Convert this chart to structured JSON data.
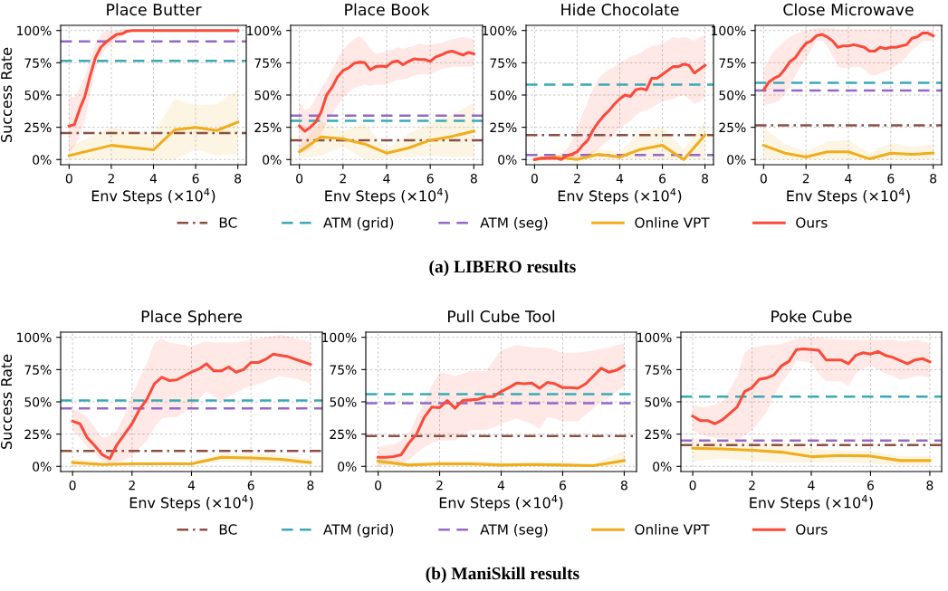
{
  "chart_data": [
    {
      "type": "line",
      "title": "Place Butter",
      "xlabel": "Env Steps (×10$^{4}$)",
      "ylabel": "Success Rate",
      "xlim": [
        -0.4,
        8.4
      ],
      "xticks": [
        0,
        2,
        4,
        6,
        8
      ],
      "ylim": [
        -4,
        104
      ],
      "yticks": [
        {
          "value": 0,
          "label": "0%"
        },
        {
          "value": 25,
          "label": "25%"
        },
        {
          "value": 50,
          "label": "50%"
        },
        {
          "value": 75,
          "label": "75%"
        },
        {
          "value": 100,
          "label": "100%"
        }
      ],
      "grid": true,
      "legend": "bottom",
      "annotations": [
        "(a) LIBERO results"
      ],
      "ref_lines": [
        {
          "axis": "y",
          "value": 20.5,
          "label": "BC",
          "color": "#8c4f45",
          "line_style": "dashdot"
        },
        {
          "axis": "y",
          "value": 76.5,
          "label": "ATM (grid)",
          "color": "#3aa9b5",
          "line_style": "dashed"
        },
        {
          "axis": "y",
          "value": 91.5,
          "label": "ATM (seg)",
          "color": "#9467c9",
          "line_style": "dashed"
        }
      ],
      "series": [
        {
          "name": "Online VPT",
          "color": "#f0ad1c",
          "x": [
            0,
            2,
            4,
            5,
            6,
            7,
            8
          ],
          "values": [
            3,
            11,
            7.5,
            23,
            25,
            22.5,
            29
          ],
          "lower": [
            0,
            0,
            0,
            0,
            8,
            3,
            4
          ],
          "upper": [
            10,
            25,
            20,
            47,
            42,
            43,
            54
          ]
        },
        {
          "name": "Ours",
          "color": "#fb4a3a",
          "x": [
            0,
            0.25,
            0.5,
            0.75,
            1,
            1.25,
            1.5,
            1.75,
            2,
            2.25,
            2.5,
            2.75,
            3,
            3.25,
            3.5,
            3.75,
            4,
            4.25,
            4.5,
            4.75,
            5,
            5.25,
            5.5,
            5.75,
            6,
            6.25,
            6.5,
            6.75,
            7,
            7.25,
            7.5,
            7.75,
            8
          ],
          "values": [
            26,
            27,
            39,
            49,
            65,
            79,
            87,
            91,
            94,
            97,
            97.5,
            99.5,
            100,
            100,
            100,
            100,
            100,
            100,
            100,
            100,
            100,
            100,
            100,
            100,
            100,
            100,
            100,
            100,
            100,
            100,
            100,
            100,
            100
          ],
          "lower": [
            5,
            10,
            18,
            30,
            50,
            70,
            80,
            86,
            89,
            93,
            95,
            98,
            100,
            100,
            100,
            100,
            100,
            100,
            100,
            100,
            100,
            100,
            100,
            100,
            100,
            100,
            100,
            100,
            100,
            100,
            100,
            100,
            100
          ],
          "upper": [
            50,
            48,
            55,
            64,
            78,
            90,
            97,
            100,
            100,
            100,
            101,
            101,
            100,
            100,
            100,
            100,
            100,
            100,
            100,
            100,
            100,
            100,
            100,
            100,
            100,
            100,
            100,
            100,
            100,
            100,
            100,
            100,
            100
          ]
        }
      ]
    },
    {
      "type": "line",
      "title": "Place Book",
      "xlabel": "Env Steps (×10$^{4}$)",
      "xlim": [
        -0.4,
        8.4
      ],
      "xticks": [
        0,
        2,
        4,
        6,
        8
      ],
      "ylim": [
        -4,
        104
      ],
      "yticks": [
        {
          "value": 0,
          "label": "0%"
        },
        {
          "value": 25,
          "label": "25%"
        },
        {
          "value": 50,
          "label": "50%"
        },
        {
          "value": 75,
          "label": "75%"
        },
        {
          "value": 100,
          "label": "100%"
        }
      ],
      "grid": true,
      "ref_lines": [
        {
          "axis": "y",
          "value": 15,
          "color": "#8c4f45",
          "line_style": "dashdot"
        },
        {
          "axis": "y",
          "value": 30,
          "color": "#3aa9b5",
          "line_style": "dashed"
        },
        {
          "axis": "y",
          "value": 34,
          "color": "#9467c9",
          "line_style": "dashed"
        }
      ],
      "series": [
        {
          "color": "#f0ad1c",
          "x": [
            0,
            1,
            2,
            3,
            4,
            5,
            6,
            7,
            8
          ],
          "values": [
            6,
            17.5,
            16,
            12,
            5,
            9,
            15,
            18,
            22
          ],
          "lower": [
            1,
            3,
            10,
            0,
            1,
            2,
            3,
            2,
            2
          ],
          "upper": [
            10,
            30,
            22,
            28,
            8,
            20,
            28,
            35,
            44
          ]
        },
        {
          "color": "#fb4a3a",
          "x": [
            0,
            0.25,
            0.5,
            0.75,
            1,
            1.25,
            1.5,
            1.75,
            2,
            2.25,
            2.5,
            2.75,
            3,
            3.25,
            3.5,
            3.75,
            4,
            4.25,
            4.5,
            4.75,
            5,
            5.25,
            5.5,
            5.75,
            6,
            6.25,
            6.5,
            6.75,
            7,
            7.25,
            7.5,
            7.75,
            8
          ],
          "values": [
            26,
            22,
            25,
            29,
            37,
            50,
            56,
            64,
            69,
            71,
            74.5,
            75.5,
            75,
            69.5,
            72,
            72.5,
            72,
            75.5,
            76.5,
            73.5,
            76,
            78,
            77.5,
            77.5,
            76,
            79.5,
            81,
            83,
            84,
            82.5,
            81,
            83,
            82
          ],
          "lower": [
            5,
            6,
            8,
            14,
            20,
            28,
            35,
            42,
            48,
            52,
            55,
            57,
            58,
            57,
            58,
            58,
            58,
            60,
            62,
            62,
            63,
            65,
            66,
            66,
            66,
            68,
            70,
            71,
            72,
            72,
            72,
            72,
            72
          ],
          "upper": [
            45,
            38,
            40,
            48,
            55,
            62,
            70,
            78,
            85,
            90,
            93,
            96,
            92,
            86,
            82,
            83,
            84,
            85,
            87,
            86,
            87,
            88,
            90,
            89,
            89,
            90,
            90,
            92,
            93,
            94,
            95,
            94,
            93
          ]
        }
      ]
    },
    {
      "type": "line",
      "title": "Hide Chocolate",
      "xlabel": "Env Steps (×10$^{4}$)",
      "xlim": [
        -0.4,
        8.4
      ],
      "xticks": [
        0,
        2,
        4,
        6,
        8
      ],
      "ylim": [
        -4,
        104
      ],
      "yticks": [
        {
          "value": 0,
          "label": "0%"
        },
        {
          "value": 25,
          "label": "25%"
        },
        {
          "value": 50,
          "label": "50%"
        },
        {
          "value": 75,
          "label": "75%"
        },
        {
          "value": 100,
          "label": "100%"
        }
      ],
      "grid": true,
      "ref_lines": [
        {
          "axis": "y",
          "value": 19,
          "color": "#8c4f45",
          "line_style": "dashdot"
        },
        {
          "axis": "y",
          "value": 58,
          "color": "#3aa9b5",
          "line_style": "dashed"
        },
        {
          "axis": "y",
          "value": 3.5,
          "color": "#9467c9",
          "line_style": "dashed"
        }
      ],
      "series": [
        {
          "color": "#f0ad1c",
          "x": [
            0,
            1,
            2,
            3,
            4,
            5,
            6,
            7,
            8
          ],
          "values": [
            0,
            2,
            0,
            4,
            2,
            8,
            11,
            0,
            19
          ],
          "lower": [
            0,
            0,
            0,
            0,
            0,
            0,
            0,
            0,
            0
          ],
          "upper": [
            1,
            4,
            3,
            8,
            6,
            22,
            25,
            8,
            30
          ]
        },
        {
          "color": "#fb4a3a",
          "x": [
            0,
            0.25,
            0.5,
            0.75,
            1,
            1.25,
            1.5,
            1.75,
            2,
            2.25,
            2.5,
            2.75,
            3,
            3.25,
            3.5,
            3.75,
            4,
            4.25,
            4.5,
            4.75,
            5,
            5.25,
            5.5,
            5.75,
            6,
            6.25,
            6.5,
            6.75,
            7,
            7.25,
            7.5,
            7.75,
            8
          ],
          "values": [
            0,
            1,
            1,
            1,
            1,
            0,
            3,
            4,
            6,
            11,
            15,
            23,
            29,
            34,
            38,
            43,
            47,
            50,
            49,
            54,
            55,
            54,
            63,
            63,
            66,
            69,
            72,
            72,
            74,
            73,
            67,
            70,
            73
          ],
          "lower": [
            0,
            0,
            0,
            0,
            0,
            0,
            0,
            0,
            0,
            1,
            2,
            5,
            8,
            12,
            15,
            20,
            25,
            27,
            30,
            34,
            37,
            38,
            40,
            43,
            45,
            46,
            47,
            49,
            50,
            47,
            43,
            45,
            48
          ],
          "upper": [
            1,
            2,
            2,
            3,
            3,
            4,
            8,
            15,
            25,
            35,
            45,
            55,
            63,
            67,
            70,
            72,
            75,
            77,
            80,
            81,
            83,
            86,
            88,
            89,
            90,
            92,
            95,
            94,
            95,
            94,
            92,
            95,
            96
          ]
        }
      ]
    },
    {
      "type": "line",
      "title": "Close Microwave",
      "xlabel": "Env Steps (×10$^{4}$)",
      "xlim": [
        -0.4,
        8.4
      ],
      "xticks": [
        0,
        2,
        4,
        6,
        8
      ],
      "ylim": [
        -4,
        104
      ],
      "yticks": [
        {
          "value": 0,
          "label": "0%"
        },
        {
          "value": 25,
          "label": "25%"
        },
        {
          "value": 50,
          "label": "50%"
        },
        {
          "value": 75,
          "label": "75%"
        },
        {
          "value": 100,
          "label": "100%"
        }
      ],
      "grid": true,
      "ref_lines": [
        {
          "axis": "y",
          "value": 26.5,
          "color": "#8c4f45",
          "line_style": "dashdot"
        },
        {
          "axis": "y",
          "value": 59.5,
          "color": "#3aa9b5",
          "line_style": "dashed"
        },
        {
          "axis": "y",
          "value": 53.5,
          "color": "#9467c9",
          "line_style": "dashed"
        }
      ],
      "series": [
        {
          "color": "#f0ad1c",
          "x": [
            0,
            1,
            2,
            3,
            4,
            5,
            6,
            7,
            8
          ],
          "values": [
            11,
            5,
            2,
            6,
            6,
            0.5,
            5,
            4,
            5
          ],
          "lower": [
            0,
            0,
            0,
            0,
            0,
            0,
            0,
            0,
            0
          ],
          "upper": [
            25,
            12,
            6,
            14,
            15,
            5,
            13,
            10,
            12
          ]
        },
        {
          "color": "#fb4a3a",
          "x": [
            0,
            0.25,
            0.5,
            0.75,
            1,
            1.25,
            1.5,
            1.75,
            2,
            2.25,
            2.5,
            2.75,
            3,
            3.25,
            3.5,
            3.75,
            4,
            4.25,
            4.5,
            4.75,
            5,
            5.25,
            5.5,
            5.75,
            6,
            6.25,
            6.5,
            6.75,
            7,
            7.25,
            7.5,
            7.75,
            8
          ],
          "values": [
            54,
            60,
            63,
            65,
            70,
            76,
            79,
            85,
            90,
            92,
            96,
            97,
            95,
            92,
            87,
            88,
            88,
            89,
            88,
            87,
            84,
            84,
            87,
            86,
            87,
            87,
            88,
            89,
            94,
            95,
            98,
            98,
            96
          ],
          "lower": [
            42,
            43,
            44,
            46,
            50,
            57,
            65,
            72,
            78,
            85,
            92,
            92,
            88,
            80,
            72,
            71,
            71,
            72,
            72,
            70,
            66,
            65,
            67,
            68,
            70,
            73,
            76,
            80,
            85,
            88,
            92,
            92,
            92
          ],
          "upper": [
            70,
            78,
            84,
            88,
            92,
            95,
            97,
            99,
            100,
            101,
            102,
            102,
            102,
            102,
            101,
            101,
            101,
            101,
            101,
            101,
            101,
            101,
            101,
            101,
            101,
            101,
            101,
            101,
            100,
            100,
            100,
            100,
            100
          ]
        }
      ]
    },
    {
      "type": "line",
      "title": "Place Sphere",
      "xlabel": "Env Steps (×10$^{4}$)",
      "ylabel": "Success Rate",
      "xlim": [
        -0.4,
        8.4
      ],
      "xticks": [
        0,
        2,
        4,
        6,
        8
      ],
      "ylim": [
        -4,
        104
      ],
      "yticks": [
        {
          "value": 0,
          "label": "0%"
        },
        {
          "value": 25,
          "label": "25%"
        },
        {
          "value": 50,
          "label": "50%"
        },
        {
          "value": 75,
          "label": "75%"
        },
        {
          "value": 100,
          "label": "100%"
        }
      ],
      "grid": true,
      "legend": "bottom",
      "annotations": [
        "(b) ManiSkill results"
      ],
      "ref_lines": [
        {
          "axis": "y",
          "value": 12,
          "label": "BC",
          "color": "#8c4f45",
          "line_style": "dashdot"
        },
        {
          "axis": "y",
          "value": 51,
          "label": "ATM (grid)",
          "color": "#3aa9b5",
          "line_style": "dashed"
        },
        {
          "axis": "y",
          "value": 45,
          "label": "ATM (seg)",
          "color": "#9467c9",
          "line_style": "dashed"
        }
      ],
      "series": [
        {
          "name": "Online VPT",
          "color": "#f0ad1c",
          "x": [
            0,
            1,
            2,
            3,
            4,
            5,
            6,
            7,
            8
          ],
          "values": [
            3,
            1.5,
            2,
            2,
            2,
            7,
            6.5,
            5.5,
            3
          ],
          "lower": [
            0,
            0,
            1,
            1,
            1,
            4,
            3,
            2,
            1
          ],
          "upper": [
            6,
            3,
            3,
            4,
            3,
            10,
            10,
            9,
            6
          ]
        },
        {
          "name": "Ours",
          "color": "#fb4a3a",
          "x": [
            0,
            0.25,
            0.5,
            0.75,
            1,
            1.25,
            1.5,
            1.75,
            2,
            2.25,
            2.5,
            2.75,
            3,
            3.25,
            3.5,
            3.75,
            4,
            4.25,
            4.5,
            4.75,
            5,
            5.25,
            5.5,
            5.75,
            6,
            6.25,
            6.5,
            6.75,
            7,
            7.25,
            7.5,
            7.75,
            8
          ],
          "values": [
            35,
            33,
            22,
            16,
            9,
            6,
            17,
            25,
            33,
            44,
            52,
            64,
            69,
            66.5,
            67,
            70,
            73,
            75.5,
            79.5,
            74,
            74,
            77,
            73,
            75,
            80.5,
            80.5,
            83,
            87,
            86,
            85,
            83,
            81,
            79
          ],
          "lower": [
            28,
            22,
            15,
            10,
            4,
            2,
            3,
            5,
            8,
            14,
            20,
            30,
            37,
            38,
            38,
            42,
            45,
            52,
            58,
            54,
            50,
            54,
            57,
            60,
            62,
            64,
            66,
            68,
            70,
            69,
            68,
            66,
            64
          ],
          "upper": [
            45,
            42,
            38,
            30,
            22,
            24,
            28,
            40,
            55,
            68,
            80,
            96,
            99,
            96,
            95,
            94,
            93,
            95,
            97,
            96,
            96,
            96,
            96,
            97,
            98,
            99,
            100,
            101,
            102,
            101,
            99,
            98,
            97
          ]
        }
      ]
    },
    {
      "type": "line",
      "title": "Pull Cube Tool",
      "xlabel": "Env Steps (×10$^{4}$)",
      "xlim": [
        -0.4,
        8.4
      ],
      "xticks": [
        0,
        2,
        4,
        6,
        8
      ],
      "ylim": [
        -4,
        104
      ],
      "yticks": [
        {
          "value": 0,
          "label": "0%"
        },
        {
          "value": 25,
          "label": "25%"
        },
        {
          "value": 50,
          "label": "50%"
        },
        {
          "value": 75,
          "label": "75%"
        },
        {
          "value": 100,
          "label": "100%"
        }
      ],
      "grid": true,
      "ref_lines": [
        {
          "axis": "y",
          "value": 23.5,
          "color": "#8c4f45",
          "line_style": "dashdot"
        },
        {
          "axis": "y",
          "value": 56,
          "color": "#3aa9b5",
          "line_style": "dashed"
        },
        {
          "axis": "y",
          "value": 49,
          "color": "#9467c9",
          "line_style": "dashed"
        }
      ],
      "series": [
        {
          "color": "#f0ad1c",
          "x": [
            0,
            1,
            2,
            3,
            4,
            5,
            6,
            7,
            8
          ],
          "values": [
            4,
            1,
            2,
            2,
            1,
            1.5,
            1,
            0.5,
            4.5
          ],
          "lower": [
            1,
            0,
            0,
            0,
            0,
            0,
            0,
            0,
            0
          ],
          "upper": [
            7,
            3,
            4,
            4,
            3,
            3,
            3,
            2,
            12
          ]
        },
        {
          "color": "#fb4a3a",
          "x": [
            0,
            0.25,
            0.5,
            0.75,
            1,
            1.25,
            1.5,
            1.75,
            2,
            2.25,
            2.5,
            2.75,
            3,
            3.25,
            3.5,
            3.75,
            4,
            4.25,
            4.5,
            4.75,
            5,
            5.25,
            5.5,
            5.75,
            6,
            6.25,
            6.5,
            6.75,
            7,
            7.25,
            7.5,
            7.75,
            8
          ],
          "values": [
            7,
            7,
            7.5,
            9,
            18,
            25,
            38,
            46,
            45.5,
            51,
            45,
            51,
            51.5,
            52,
            54,
            54,
            58,
            61,
            64.5,
            64,
            64.5,
            60.5,
            65,
            64,
            61,
            61,
            60.5,
            64,
            70,
            76,
            73,
            74.5,
            78
          ],
          "lower": [
            0,
            1,
            2,
            3,
            5,
            10,
            15,
            18,
            20,
            20,
            20,
            24,
            28,
            28,
            28,
            30,
            33,
            35,
            37,
            35,
            33,
            29,
            38,
            37,
            35,
            35,
            35,
            40,
            45,
            50,
            53,
            58,
            62
          ],
          "upper": [
            15,
            16,
            17,
            20,
            25,
            38,
            50,
            63,
            73,
            72,
            70,
            72,
            74,
            74,
            74,
            82,
            90,
            92,
            94,
            93,
            92,
            92,
            92,
            90,
            88,
            88,
            88,
            89,
            90,
            91,
            92,
            94,
            95
          ]
        }
      ]
    },
    {
      "type": "line",
      "title": "Poke Cube",
      "xlabel": "Env Steps (×10$^{4}$)",
      "xlim": [
        -0.4,
        8.4
      ],
      "xticks": [
        0,
        2,
        4,
        6,
        8
      ],
      "ylim": [
        -4,
        104
      ],
      "yticks": [
        {
          "value": 0,
          "label": "0%"
        },
        {
          "value": 25,
          "label": "25%"
        },
        {
          "value": 50,
          "label": "50%"
        },
        {
          "value": 75,
          "label": "75%"
        },
        {
          "value": 100,
          "label": "100%"
        }
      ],
      "grid": true,
      "ref_lines": [
        {
          "axis": "y",
          "value": 16.5,
          "color": "#8c4f45",
          "line_style": "dashdot"
        },
        {
          "axis": "y",
          "value": 54,
          "color": "#3aa9b5",
          "line_style": "dashed"
        },
        {
          "axis": "y",
          "value": 20,
          "color": "#9467c9",
          "line_style": "dashed"
        }
      ],
      "series": [
        {
          "color": "#f0ad1c",
          "x": [
            0,
            1,
            2,
            3,
            4,
            5,
            6,
            7,
            8
          ],
          "values": [
            14,
            13.5,
            12.5,
            11,
            7.5,
            8.5,
            8,
            4.5,
            4.5
          ],
          "lower": [
            4,
            6,
            4,
            3,
            3,
            3,
            2,
            1,
            1
          ],
          "upper": [
            22,
            20,
            19,
            18,
            14,
            12,
            12,
            8,
            8
          ]
        },
        {
          "color": "#fb4a3a",
          "x": [
            0,
            0.25,
            0.5,
            0.75,
            1,
            1.25,
            1.5,
            1.75,
            2,
            2.25,
            2.5,
            2.75,
            3,
            3.25,
            3.5,
            3.75,
            4,
            4.25,
            4.5,
            4.75,
            5,
            5.25,
            5.5,
            5.75,
            6,
            6.25,
            6.5,
            6.75,
            7,
            7.25,
            7.5,
            7.75,
            8
          ],
          "values": [
            39,
            35.5,
            35.5,
            33,
            36,
            41,
            46,
            58,
            61,
            67.5,
            68.5,
            71,
            78,
            81.5,
            90.5,
            91,
            90.5,
            90,
            82.5,
            82.5,
            82.5,
            79.5,
            86,
            88,
            87,
            89,
            86,
            84.5,
            82,
            79.5,
            82.5,
            83.5,
            81
          ],
          "lower": [
            28,
            25,
            23,
            22,
            22,
            21,
            20,
            24,
            28,
            35,
            42,
            55,
            65,
            72,
            82,
            81,
            80,
            72,
            66,
            66,
            66,
            62,
            72,
            76,
            78,
            75,
            72,
            70,
            67,
            68,
            70,
            70,
            69
          ],
          "upper": [
            48,
            46,
            46,
            48,
            50,
            60,
            70,
            88,
            92,
            93,
            94,
            94,
            95,
            97,
            99,
            100,
            100,
            100,
            99,
            99,
            98,
            98,
            98,
            98,
            98,
            98,
            98,
            98,
            97,
            97,
            98,
            97,
            95
          ]
        }
      ]
    }
  ]
}
